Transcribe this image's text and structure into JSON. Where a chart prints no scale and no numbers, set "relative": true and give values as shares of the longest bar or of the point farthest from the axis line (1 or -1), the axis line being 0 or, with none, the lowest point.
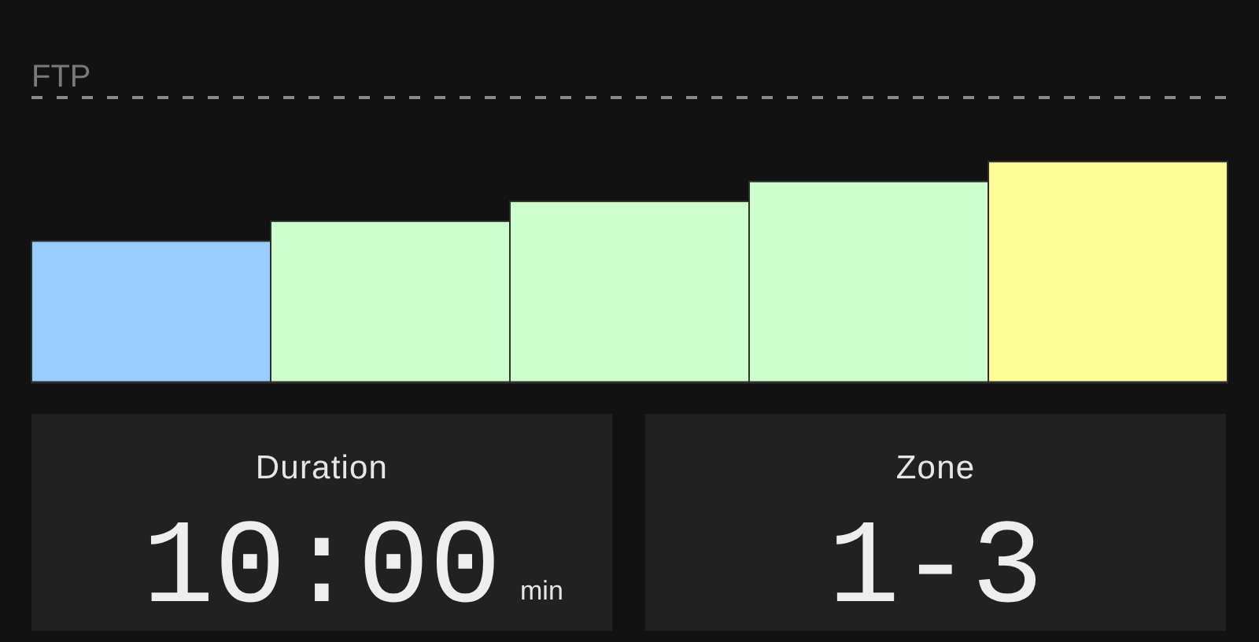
{
  "chart_data": [
    {
      "type": "bar",
      "relative": true,
      "categories": [
        null,
        null,
        null,
        null,
        null
      ],
      "values": [
        0.64,
        0.73,
        0.82,
        0.91,
        1
      ],
      "colors": [
        "#99ccff",
        "#ccffcc",
        "#ccffcc",
        "#ccffcc",
        "#ffff99"
      ],
      "ref_lines": [
        {
          "axis": "y",
          "value": 1.29,
          "label": "FTP",
          "color": "#8a8a8a",
          "line_style": "dashed"
        }
      ]
    },
    {
      "type": "other",
      "title": "Duration",
      "annotations": [
        "10:00",
        "min"
      ]
    },
    {
      "type": "other",
      "title": "Zone",
      "annotations": [
        "1-3"
      ]
    }
  ]
}
